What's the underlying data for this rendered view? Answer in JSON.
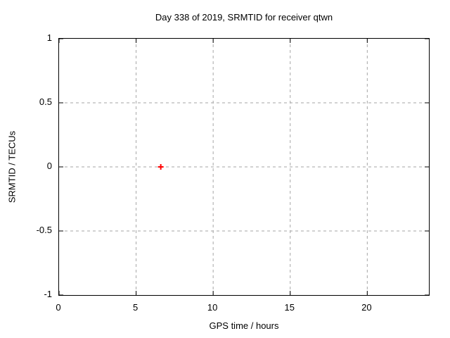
{
  "chart_data": {
    "type": "scatter",
    "title": "Day 338 of 2019, SRMTID for receiver qtwn",
    "xlabel": "GPS time / hours",
    "ylabel": "SRMTID / TECUs",
    "xlim": [
      0,
      24
    ],
    "ylim": [
      -1,
      1
    ],
    "x_ticks": [
      0,
      5,
      10,
      15,
      20
    ],
    "y_ticks": [
      1,
      0.5,
      0,
      -0.5,
      -1
    ],
    "grid": true,
    "legend": "none",
    "colors": {
      "background": "#ffffff",
      "frame": "#000000",
      "grid": "#a6a6a6",
      "marker": "#ff0000"
    },
    "series": [
      {
        "marker": "plus",
        "color": "#ff0000",
        "points": [
          {
            "x": 6.6,
            "y": 0.0
          }
        ]
      }
    ]
  }
}
